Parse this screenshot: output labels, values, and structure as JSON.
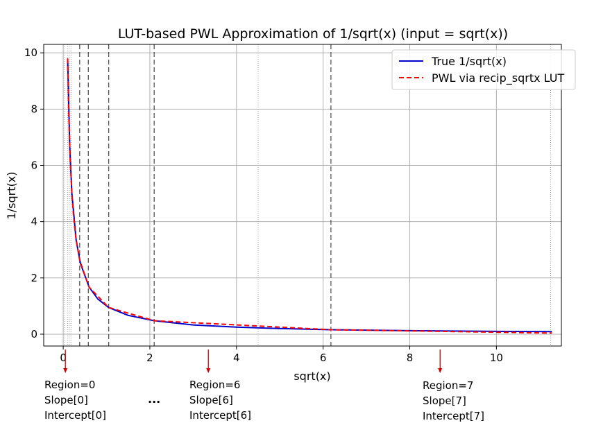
{
  "chart_data": {
    "type": "line",
    "title": "LUT-based PWL Approximation of 1/sqrt(x) (input = sqrt(x))",
    "xlabel": "sqrt(x)",
    "ylabel": "1/sqrt(x)",
    "xlim": [
      -0.45,
      11.5
    ],
    "ylim": [
      -0.42,
      10.3
    ],
    "xticks": [
      0,
      2,
      4,
      6,
      8,
      10
    ],
    "yticks": [
      0,
      2,
      4,
      6,
      8,
      10
    ],
    "grid": true,
    "legend_position": "top-right",
    "series": [
      {
        "name": "True 1/sqrt(x)",
        "color": "#0000cc",
        "style": "solid",
        "x": [
          0.102,
          0.15,
          0.2,
          0.3,
          0.4,
          0.6,
          0.8,
          1.05,
          1.5,
          2.1,
          3,
          4,
          5,
          6.18,
          8,
          10,
          11.28
        ],
        "y": [
          9.8,
          6.67,
          5.0,
          3.33,
          2.5,
          1.67,
          1.25,
          0.95,
          0.67,
          0.48,
          0.33,
          0.25,
          0.2,
          0.16,
          0.125,
          0.1,
          0.089
        ]
      },
      {
        "name": "PWL via recip_sqrtx LUT",
        "color": "#ff0000",
        "style": "dashed",
        "x": [
          0.102,
          0.13,
          0.16,
          0.2,
          0.24,
          0.29,
          0.38,
          0.6,
          1.05,
          2.1,
          6.18,
          11.28
        ],
        "y": [
          9.8,
          7.7,
          6.25,
          5.0,
          4.17,
          3.45,
          2.63,
          1.67,
          0.95,
          0.48,
          0.16,
          0.04
        ]
      }
    ],
    "region_boundaries": [
      0.38,
      0.58,
      1.05,
      2.1,
      6.18
    ],
    "subregion_markers": [
      0.03,
      0.1,
      0.14,
      0.18,
      4.5,
      11.25
    ],
    "annotations": [
      {
        "x": 0.05,
        "lines": [
          "Region=0",
          "Slope[0]",
          "Intercept[0]"
        ]
      },
      {
        "x": 3.35,
        "lines": [
          "Region=6",
          "Slope[6]",
          "Intercept[6]"
        ]
      },
      {
        "x": 8.7,
        "lines": [
          "Region=7",
          "Slope[7]",
          "Intercept[7]"
        ]
      }
    ],
    "ellipsis": "...",
    "arrow_color": "#cc0000"
  }
}
